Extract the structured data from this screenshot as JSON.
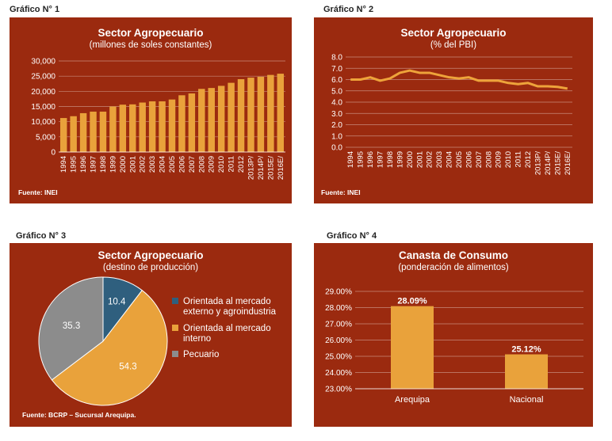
{
  "charts": [
    {
      "label": "Gráfico N° 1",
      "title": "Sector Agropecuario",
      "subtitle": "(millones de soles constantes)",
      "source": "Fuente: INEI"
    },
    {
      "label": "Gráfico N° 2",
      "title": "Sector Agropecuario",
      "subtitle": "(% del PBI)",
      "source": "Fuente: INEI"
    },
    {
      "label": "Gráfico N° 3",
      "title": "Sector Agropecuario",
      "subtitle": "(destino de producción)",
      "source": "Fuente: BCRP – Sucursal Arequipa."
    },
    {
      "label": "Gráfico N° 4",
      "title": "Canasta de Consumo",
      "subtitle": "(ponderación de alimentos)",
      "source": ""
    }
  ],
  "colors": {
    "panel_bg": "#9B2A0F",
    "bar": "#E9A23B",
    "line": "#EEA33A",
    "pie_blue": "#2F5F7E",
    "pie_orange": "#E9A23B",
    "pie_gray": "#8C8C8C"
  },
  "chart_data": [
    {
      "type": "bar",
      "categories": [
        "1994",
        "1995",
        "1996",
        "1997",
        "1998",
        "1999",
        "2000",
        "2001",
        "2002",
        "2003",
        "2004",
        "2005",
        "2006",
        "2007",
        "2008",
        "2009",
        "2010",
        "2011",
        "2012",
        "2013P/",
        "2014P/",
        "2015E/",
        "2016E/"
      ],
      "values": [
        11200,
        11800,
        12800,
        13300,
        13300,
        15000,
        15600,
        15700,
        16300,
        16700,
        16700,
        17300,
        18700,
        19300,
        20800,
        21100,
        21800,
        22800,
        24000,
        24500,
        24800,
        25400,
        25800
      ],
      "ylim": [
        0,
        30000
      ],
      "yticks": [
        "0",
        "5,000",
        "10,000",
        "15,000",
        "20,000",
        "25,000",
        "30,000"
      ],
      "grid": true
    },
    {
      "type": "line",
      "categories": [
        "1994",
        "1995",
        "1996",
        "1997",
        "1998",
        "1999",
        "2000",
        "2001",
        "2002",
        "2003",
        "2004",
        "2005",
        "2006",
        "2007",
        "2008",
        "2009",
        "2010",
        "2011",
        "2012",
        "2013P/",
        "2014P/",
        "2015E/",
        "2016E/"
      ],
      "values": [
        6.0,
        6.0,
        6.2,
        5.9,
        6.1,
        6.6,
        6.8,
        6.6,
        6.6,
        6.4,
        6.2,
        6.1,
        6.2,
        5.9,
        5.9,
        5.9,
        5.7,
        5.6,
        5.7,
        5.4,
        5.4,
        5.35,
        5.2
      ],
      "ylim": [
        0,
        8
      ],
      "yticks": [
        "0.0",
        "1.0",
        "2.0",
        "3.0",
        "4.0",
        "5.0",
        "6.0",
        "7.0",
        "8.0"
      ],
      "grid": true
    },
    {
      "type": "pie",
      "slices": [
        {
          "label": "Orientada al mercado externo y agroindustria",
          "legend_lines": [
            "Orientada al mercado",
            "externo y agroindustria"
          ],
          "value": 10.4,
          "value_label": "10.4"
        },
        {
          "label": "Orientada al mercado interno",
          "legend_lines": [
            "Orientada al mercado",
            "interno"
          ],
          "value": 54.3,
          "value_label": "54.3"
        },
        {
          "label": "Pecuario",
          "legend_lines": [
            "Pecuario"
          ],
          "value": 35.3,
          "value_label": "35.3"
        }
      ],
      "legend_placement": "right"
    },
    {
      "type": "bar",
      "categories": [
        "Arequipa",
        "Nacional"
      ],
      "values": [
        28.09,
        25.12
      ],
      "value_labels": [
        "28.09%",
        "25.12%"
      ],
      "ylim": [
        23.0,
        29.0
      ],
      "yticks": [
        "23.00%",
        "24.00%",
        "25.00%",
        "26.00%",
        "27.00%",
        "28.00%",
        "29.00%"
      ],
      "grid": true
    }
  ]
}
